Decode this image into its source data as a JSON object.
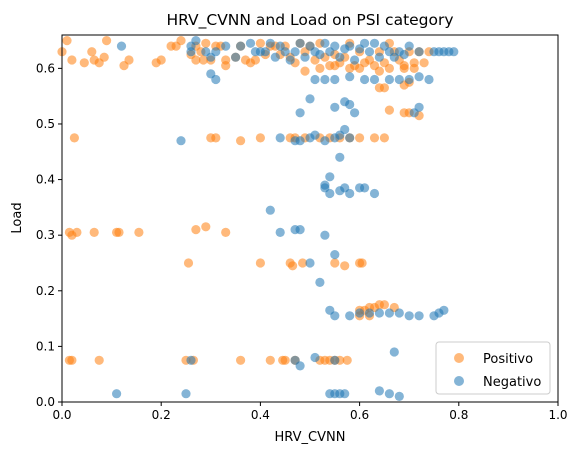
{
  "chart_data": {
    "type": "scatter",
    "title": "HRV_CVNN and Load on PSI category",
    "xlabel": "HRV_CVNN",
    "ylabel": "Load",
    "xlim": [
      0.0,
      1.0
    ],
    "ylim": [
      0.0,
      0.66
    ],
    "x_ticks": [
      "0.0",
      "0.2",
      "0.4",
      "0.6",
      "0.8",
      "1.0"
    ],
    "y_ticks": [
      "0.0",
      "0.1",
      "0.2",
      "0.3",
      "0.4",
      "0.5",
      "0.6"
    ],
    "grid": false,
    "legend": "lower-right",
    "series": [
      {
        "name": "Positivo",
        "color": "#ff7f0e",
        "points": [
          [
            0.0,
            0.63
          ],
          [
            0.01,
            0.65
          ],
          [
            0.02,
            0.615
          ],
          [
            0.045,
            0.61
          ],
          [
            0.06,
            0.63
          ],
          [
            0.065,
            0.615
          ],
          [
            0.075,
            0.61
          ],
          [
            0.085,
            0.62
          ],
          [
            0.09,
            0.65
          ],
          [
            0.125,
            0.605
          ],
          [
            0.135,
            0.615
          ],
          [
            0.19,
            0.61
          ],
          [
            0.2,
            0.615
          ],
          [
            0.22,
            0.64
          ],
          [
            0.23,
            0.64
          ],
          [
            0.24,
            0.65
          ],
          [
            0.26,
            0.625
          ],
          [
            0.27,
            0.64
          ],
          [
            0.27,
            0.615
          ],
          [
            0.28,
            0.63
          ],
          [
            0.285,
            0.615
          ],
          [
            0.29,
            0.645
          ],
          [
            0.3,
            0.615
          ],
          [
            0.31,
            0.64
          ],
          [
            0.32,
            0.64
          ],
          [
            0.33,
            0.615
          ],
          [
            0.33,
            0.605
          ],
          [
            0.35,
            0.62
          ],
          [
            0.36,
            0.64
          ],
          [
            0.37,
            0.615
          ],
          [
            0.38,
            0.61
          ],
          [
            0.39,
            0.615
          ],
          [
            0.4,
            0.645
          ],
          [
            0.41,
            0.625
          ],
          [
            0.42,
            0.64
          ],
          [
            0.43,
            0.64
          ],
          [
            0.44,
            0.625
          ],
          [
            0.45,
            0.64
          ],
          [
            0.46,
            0.62
          ],
          [
            0.47,
            0.61
          ],
          [
            0.48,
            0.645
          ],
          [
            0.49,
            0.63
          ],
          [
            0.5,
            0.64
          ],
          [
            0.51,
            0.615
          ],
          [
            0.52,
            0.645
          ],
          [
            0.53,
            0.62
          ],
          [
            0.54,
            0.605
          ],
          [
            0.55,
            0.625
          ],
          [
            0.56,
            0.61
          ],
          [
            0.57,
            0.62
          ],
          [
            0.58,
            0.645
          ],
          [
            0.59,
            0.605
          ],
          [
            0.6,
            0.63
          ],
          [
            0.61,
            0.61
          ],
          [
            0.62,
            0.615
          ],
          [
            0.63,
            0.605
          ],
          [
            0.64,
            0.63
          ],
          [
            0.65,
            0.61
          ],
          [
            0.66,
            0.645
          ],
          [
            0.67,
            0.63
          ],
          [
            0.68,
            0.615
          ],
          [
            0.69,
            0.605
          ],
          [
            0.7,
            0.63
          ],
          [
            0.71,
            0.61
          ],
          [
            0.72,
            0.63
          ],
          [
            0.73,
            0.61
          ],
          [
            0.74,
            0.63
          ],
          [
            0.49,
            0.595
          ],
          [
            0.52,
            0.6
          ],
          [
            0.55,
            0.605
          ],
          [
            0.58,
            0.6
          ],
          [
            0.6,
            0.6
          ],
          [
            0.64,
            0.595
          ],
          [
            0.66,
            0.6
          ],
          [
            0.69,
            0.6
          ],
          [
            0.71,
            0.6
          ],
          [
            0.64,
            0.565
          ],
          [
            0.65,
            0.565
          ],
          [
            0.69,
            0.57
          ],
          [
            0.7,
            0.575
          ],
          [
            0.66,
            0.525
          ],
          [
            0.69,
            0.52
          ],
          [
            0.7,
            0.52
          ],
          [
            0.72,
            0.515
          ],
          [
            0.025,
            0.475
          ],
          [
            0.3,
            0.475
          ],
          [
            0.31,
            0.475
          ],
          [
            0.36,
            0.47
          ],
          [
            0.4,
            0.475
          ],
          [
            0.46,
            0.475
          ],
          [
            0.47,
            0.475
          ],
          [
            0.49,
            0.475
          ],
          [
            0.52,
            0.475
          ],
          [
            0.54,
            0.475
          ],
          [
            0.56,
            0.475
          ],
          [
            0.58,
            0.475
          ],
          [
            0.6,
            0.475
          ],
          [
            0.63,
            0.475
          ],
          [
            0.65,
            0.475
          ],
          [
            0.015,
            0.305
          ],
          [
            0.02,
            0.3
          ],
          [
            0.03,
            0.305
          ],
          [
            0.065,
            0.305
          ],
          [
            0.11,
            0.305
          ],
          [
            0.115,
            0.305
          ],
          [
            0.155,
            0.305
          ],
          [
            0.27,
            0.31
          ],
          [
            0.29,
            0.315
          ],
          [
            0.33,
            0.305
          ],
          [
            0.255,
            0.25
          ],
          [
            0.4,
            0.25
          ],
          [
            0.46,
            0.25
          ],
          [
            0.465,
            0.245
          ],
          [
            0.485,
            0.25
          ],
          [
            0.55,
            0.25
          ],
          [
            0.57,
            0.245
          ],
          [
            0.6,
            0.25
          ],
          [
            0.605,
            0.25
          ],
          [
            0.6,
            0.165
          ],
          [
            0.61,
            0.165
          ],
          [
            0.62,
            0.17
          ],
          [
            0.63,
            0.17
          ],
          [
            0.64,
            0.175
          ],
          [
            0.65,
            0.175
          ],
          [
            0.67,
            0.17
          ],
          [
            0.6,
            0.155
          ],
          [
            0.62,
            0.155
          ],
          [
            0.015,
            0.075
          ],
          [
            0.02,
            0.075
          ],
          [
            0.075,
            0.075
          ],
          [
            0.25,
            0.075
          ],
          [
            0.265,
            0.075
          ],
          [
            0.36,
            0.075
          ],
          [
            0.42,
            0.075
          ],
          [
            0.445,
            0.075
          ],
          [
            0.45,
            0.075
          ],
          [
            0.47,
            0.075
          ],
          [
            0.52,
            0.075
          ],
          [
            0.53,
            0.075
          ],
          [
            0.54,
            0.075
          ],
          [
            0.55,
            0.075
          ],
          [
            0.56,
            0.075
          ],
          [
            0.575,
            0.075
          ]
        ]
      },
      {
        "name": "Negativo",
        "color": "#1f77b4",
        "points": [
          [
            0.12,
            0.64
          ],
          [
            0.26,
            0.63
          ],
          [
            0.26,
            0.64
          ],
          [
            0.27,
            0.65
          ],
          [
            0.29,
            0.63
          ],
          [
            0.3,
            0.62
          ],
          [
            0.31,
            0.63
          ],
          [
            0.33,
            0.64
          ],
          [
            0.35,
            0.62
          ],
          [
            0.36,
            0.64
          ],
          [
            0.38,
            0.645
          ],
          [
            0.39,
            0.63
          ],
          [
            0.4,
            0.63
          ],
          [
            0.41,
            0.63
          ],
          [
            0.42,
            0.645
          ],
          [
            0.43,
            0.62
          ],
          [
            0.44,
            0.64
          ],
          [
            0.45,
            0.63
          ],
          [
            0.46,
            0.615
          ],
          [
            0.47,
            0.63
          ],
          [
            0.48,
            0.645
          ],
          [
            0.49,
            0.62
          ],
          [
            0.5,
            0.64
          ],
          [
            0.51,
            0.63
          ],
          [
            0.52,
            0.625
          ],
          [
            0.53,
            0.645
          ],
          [
            0.54,
            0.63
          ],
          [
            0.55,
            0.64
          ],
          [
            0.56,
            0.62
          ],
          [
            0.57,
            0.635
          ],
          [
            0.58,
            0.64
          ],
          [
            0.59,
            0.615
          ],
          [
            0.6,
            0.635
          ],
          [
            0.61,
            0.645
          ],
          [
            0.62,
            0.63
          ],
          [
            0.63,
            0.645
          ],
          [
            0.64,
            0.62
          ],
          [
            0.65,
            0.64
          ],
          [
            0.66,
            0.63
          ],
          [
            0.67,
            0.62
          ],
          [
            0.68,
            0.63
          ],
          [
            0.69,
            0.625
          ],
          [
            0.7,
            0.64
          ],
          [
            0.72,
            0.63
          ],
          [
            0.75,
            0.63
          ],
          [
            0.76,
            0.63
          ],
          [
            0.77,
            0.63
          ],
          [
            0.78,
            0.63
          ],
          [
            0.79,
            0.63
          ],
          [
            0.3,
            0.59
          ],
          [
            0.31,
            0.58
          ],
          [
            0.51,
            0.58
          ],
          [
            0.53,
            0.58
          ],
          [
            0.55,
            0.58
          ],
          [
            0.58,
            0.585
          ],
          [
            0.61,
            0.58
          ],
          [
            0.63,
            0.58
          ],
          [
            0.66,
            0.58
          ],
          [
            0.68,
            0.58
          ],
          [
            0.7,
            0.58
          ],
          [
            0.72,
            0.585
          ],
          [
            0.74,
            0.58
          ],
          [
            0.48,
            0.52
          ],
          [
            0.5,
            0.545
          ],
          [
            0.55,
            0.53
          ],
          [
            0.57,
            0.54
          ],
          [
            0.58,
            0.535
          ],
          [
            0.59,
            0.52
          ],
          [
            0.72,
            0.53
          ],
          [
            0.71,
            0.52
          ],
          [
            0.24,
            0.47
          ],
          [
            0.44,
            0.475
          ],
          [
            0.47,
            0.47
          ],
          [
            0.48,
            0.47
          ],
          [
            0.5,
            0.475
          ],
          [
            0.51,
            0.48
          ],
          [
            0.53,
            0.47
          ],
          [
            0.55,
            0.475
          ],
          [
            0.56,
            0.48
          ],
          [
            0.57,
            0.49
          ],
          [
            0.58,
            0.475
          ],
          [
            0.56,
            0.44
          ],
          [
            0.53,
            0.39
          ],
          [
            0.53,
            0.385
          ],
          [
            0.54,
            0.375
          ],
          [
            0.54,
            0.405
          ],
          [
            0.56,
            0.38
          ],
          [
            0.57,
            0.385
          ],
          [
            0.58,
            0.375
          ],
          [
            0.6,
            0.385
          ],
          [
            0.61,
            0.385
          ],
          [
            0.63,
            0.375
          ],
          [
            0.42,
            0.345
          ],
          [
            0.44,
            0.305
          ],
          [
            0.47,
            0.31
          ],
          [
            0.48,
            0.31
          ],
          [
            0.53,
            0.3
          ],
          [
            0.55,
            0.265
          ],
          [
            0.5,
            0.25
          ],
          [
            0.52,
            0.215
          ],
          [
            0.54,
            0.165
          ],
          [
            0.55,
            0.155
          ],
          [
            0.58,
            0.155
          ],
          [
            0.6,
            0.16
          ],
          [
            0.62,
            0.16
          ],
          [
            0.64,
            0.16
          ],
          [
            0.66,
            0.16
          ],
          [
            0.68,
            0.16
          ],
          [
            0.7,
            0.155
          ],
          [
            0.72,
            0.155
          ],
          [
            0.75,
            0.155
          ],
          [
            0.76,
            0.16
          ],
          [
            0.77,
            0.165
          ],
          [
            0.26,
            0.075
          ],
          [
            0.47,
            0.075
          ],
          [
            0.48,
            0.065
          ],
          [
            0.51,
            0.08
          ],
          [
            0.55,
            0.075
          ],
          [
            0.67,
            0.09
          ],
          [
            0.11,
            0.015
          ],
          [
            0.25,
            0.015
          ],
          [
            0.54,
            0.015
          ],
          [
            0.55,
            0.015
          ],
          [
            0.56,
            0.015
          ],
          [
            0.57,
            0.015
          ],
          [
            0.64,
            0.02
          ],
          [
            0.66,
            0.015
          ],
          [
            0.68,
            0.01
          ]
        ]
      }
    ]
  }
}
